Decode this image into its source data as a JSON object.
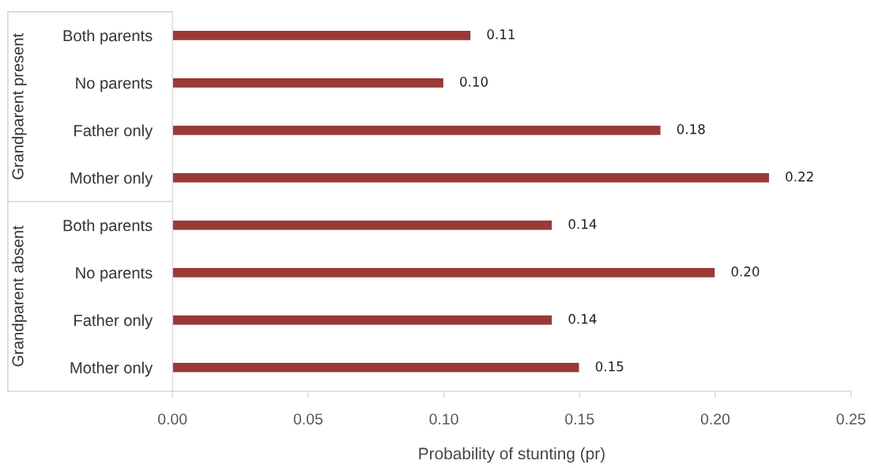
{
  "chart_data": {
    "type": "bar",
    "orientation": "horizontal",
    "categories": [
      "Both parents",
      "No parents",
      "Father only",
      "Mother only",
      "Both parents",
      "No parents",
      "Father only",
      "Mother only"
    ],
    "values": [
      0.11,
      0.1,
      0.18,
      0.22,
      0.14,
      0.2,
      0.14,
      0.15
    ],
    "value_labels": [
      "0.11",
      "0.10",
      "0.18",
      "0.22",
      "0.14",
      "0.20",
      "0.14",
      "0.15"
    ],
    "color": "#993a37",
    "xlabel": "Probability of stunting (pr)",
    "xlim": [
      0,
      0.25
    ],
    "xticks": [
      {
        "value": 0,
        "label": "0.00"
      },
      {
        "value": 0.05,
        "label": "0.05"
      },
      {
        "value": 0.1,
        "label": "0.10"
      },
      {
        "value": 0.15,
        "label": "0.15"
      },
      {
        "value": 0.2,
        "label": "0.20"
      },
      {
        "value": 0.25,
        "label": "0.25"
      }
    ],
    "annotations": [
      "Grandparent present",
      "Grandparent absent"
    ],
    "grid": false,
    "legend": false
  }
}
